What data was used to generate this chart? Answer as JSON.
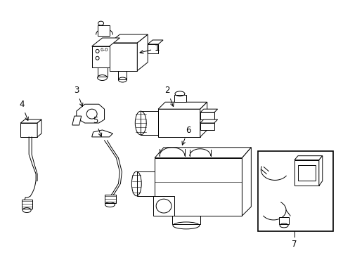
{
  "background_color": "#ffffff",
  "line_color": "#000000",
  "fig_width": 4.89,
  "fig_height": 3.6,
  "dpi": 100,
  "font_size": 8.5,
  "lw": 0.7
}
